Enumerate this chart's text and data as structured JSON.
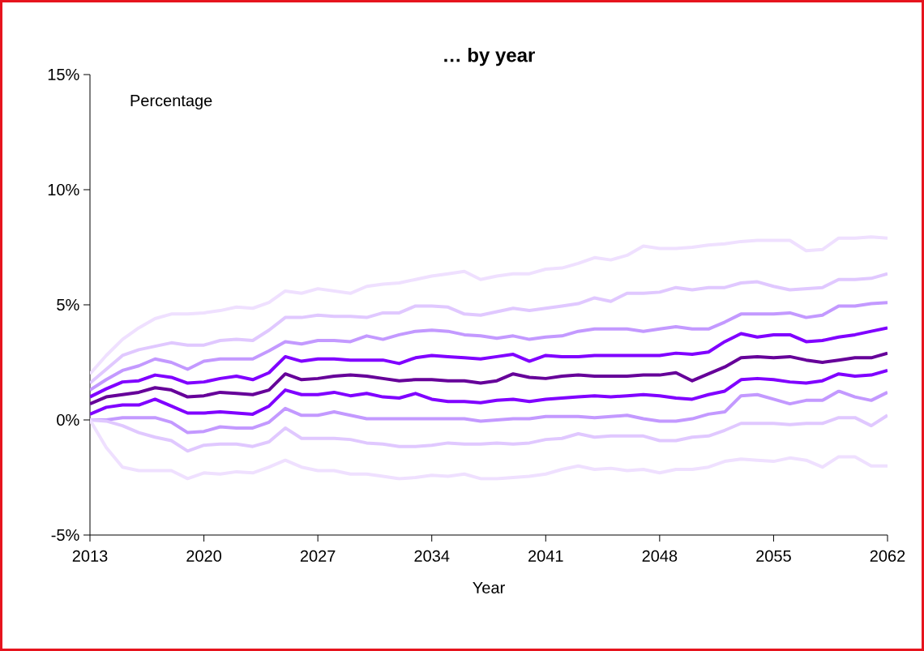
{
  "chart_data": {
    "type": "line",
    "title": "… by year",
    "xlabel": "Year",
    "ylabel": "Percentage",
    "x": [
      2013,
      2014,
      2015,
      2016,
      2017,
      2018,
      2019,
      2020,
      2021,
      2022,
      2023,
      2024,
      2025,
      2026,
      2027,
      2028,
      2029,
      2030,
      2031,
      2032,
      2033,
      2034,
      2035,
      2036,
      2037,
      2038,
      2039,
      2040,
      2041,
      2042,
      2043,
      2044,
      2045,
      2046,
      2047,
      2048,
      2049,
      2050,
      2051,
      2052,
      2053,
      2054,
      2055,
      2056,
      2057,
      2058,
      2059,
      2060,
      2061,
      2062
    ],
    "series": [
      {
        "color": "#efe0ff",
        "values": [
          2.0,
          2.8,
          3.5,
          4.0,
          4.4,
          4.6,
          4.6,
          4.65,
          4.75,
          4.9,
          4.85,
          5.1,
          5.6,
          5.5,
          5.7,
          5.6,
          5.5,
          5.8,
          5.9,
          5.95,
          6.1,
          6.25,
          6.35,
          6.45,
          6.1,
          6.25,
          6.35,
          6.35,
          6.55,
          6.6,
          6.8,
          7.05,
          6.95,
          7.15,
          7.55,
          7.45,
          7.45,
          7.5,
          7.6,
          7.65,
          7.75,
          7.8,
          7.8,
          7.8,
          7.35,
          7.4,
          7.9,
          7.9,
          7.95,
          7.9
        ]
      },
      {
        "color": "#e0c8ff",
        "values": [
          1.6,
          2.2,
          2.8,
          3.05,
          3.2,
          3.35,
          3.25,
          3.25,
          3.45,
          3.5,
          3.45,
          3.9,
          4.45,
          4.45,
          4.55,
          4.5,
          4.5,
          4.45,
          4.65,
          4.65,
          4.95,
          4.95,
          4.9,
          4.6,
          4.55,
          4.7,
          4.85,
          4.75,
          4.85,
          4.95,
          5.05,
          5.3,
          5.15,
          5.5,
          5.5,
          5.55,
          5.75,
          5.65,
          5.75,
          5.75,
          5.95,
          6.0,
          5.8,
          5.65,
          5.7,
          5.75,
          6.1,
          6.1,
          6.15,
          6.35
        ]
      },
      {
        "color": "#c399ff",
        "values": [
          1.3,
          1.75,
          2.15,
          2.35,
          2.65,
          2.5,
          2.2,
          2.55,
          2.65,
          2.65,
          2.65,
          3.0,
          3.4,
          3.3,
          3.45,
          3.45,
          3.4,
          3.65,
          3.5,
          3.7,
          3.85,
          3.9,
          3.85,
          3.7,
          3.65,
          3.55,
          3.65,
          3.5,
          3.6,
          3.65,
          3.85,
          3.95,
          3.95,
          3.95,
          3.85,
          3.95,
          4.05,
          3.95,
          3.95,
          4.25,
          4.6,
          4.6,
          4.6,
          4.65,
          4.45,
          4.55,
          4.95,
          4.95,
          5.05,
          5.1
        ]
      },
      {
        "color": "#8000ff",
        "values": [
          1.0,
          1.35,
          1.65,
          1.7,
          1.95,
          1.85,
          1.6,
          1.65,
          1.8,
          1.9,
          1.75,
          2.05,
          2.75,
          2.55,
          2.65,
          2.65,
          2.6,
          2.6,
          2.6,
          2.45,
          2.7,
          2.8,
          2.75,
          2.7,
          2.65,
          2.75,
          2.85,
          2.55,
          2.8,
          2.75,
          2.75,
          2.8,
          2.8,
          2.8,
          2.8,
          2.8,
          2.9,
          2.85,
          2.95,
          3.4,
          3.75,
          3.6,
          3.7,
          3.7,
          3.4,
          3.45,
          3.6,
          3.7,
          3.85,
          4.0
        ]
      },
      {
        "color": "#660099",
        "values": [
          0.7,
          1.0,
          1.1,
          1.2,
          1.4,
          1.3,
          1.0,
          1.05,
          1.2,
          1.15,
          1.1,
          1.3,
          2.0,
          1.75,
          1.8,
          1.9,
          1.95,
          1.9,
          1.8,
          1.7,
          1.75,
          1.75,
          1.7,
          1.7,
          1.6,
          1.7,
          2.0,
          1.85,
          1.8,
          1.9,
          1.95,
          1.9,
          1.9,
          1.9,
          1.95,
          1.95,
          2.05,
          1.7,
          2.0,
          2.3,
          2.7,
          2.75,
          2.7,
          2.75,
          2.6,
          2.5,
          2.6,
          2.7,
          2.7,
          2.9
        ]
      },
      {
        "color": "#8000ff",
        "values": [
          0.25,
          0.55,
          0.65,
          0.65,
          0.9,
          0.6,
          0.3,
          0.3,
          0.35,
          0.3,
          0.25,
          0.6,
          1.3,
          1.1,
          1.1,
          1.2,
          1.05,
          1.15,
          1.0,
          0.95,
          1.15,
          0.9,
          0.8,
          0.8,
          0.75,
          0.85,
          0.9,
          0.8,
          0.9,
          0.95,
          1.0,
          1.05,
          1.0,
          1.05,
          1.1,
          1.05,
          0.95,
          0.9,
          1.1,
          1.25,
          1.75,
          1.8,
          1.75,
          1.65,
          1.6,
          1.7,
          2.0,
          1.9,
          1.95,
          2.15
        ]
      },
      {
        "color": "#c399ff",
        "values": [
          0.0,
          0.0,
          0.1,
          0.1,
          0.1,
          -0.1,
          -0.55,
          -0.5,
          -0.3,
          -0.35,
          -0.35,
          -0.1,
          0.5,
          0.2,
          0.2,
          0.35,
          0.2,
          0.05,
          0.05,
          0.05,
          0.05,
          0.05,
          0.05,
          0.05,
          -0.05,
          0.0,
          0.05,
          0.05,
          0.15,
          0.15,
          0.15,
          0.1,
          0.15,
          0.2,
          0.05,
          -0.05,
          -0.05,
          0.05,
          0.25,
          0.35,
          1.05,
          1.1,
          0.9,
          0.7,
          0.85,
          0.85,
          1.25,
          1.0,
          0.85,
          1.2
        ]
      },
      {
        "color": "#e0c8ff",
        "values": [
          0.0,
          -0.05,
          -0.25,
          -0.55,
          -0.75,
          -0.9,
          -1.35,
          -1.1,
          -1.05,
          -1.05,
          -1.15,
          -0.95,
          -0.35,
          -0.8,
          -0.8,
          -0.8,
          -0.85,
          -1.0,
          -1.05,
          -1.15,
          -1.15,
          -1.1,
          -1.0,
          -1.05,
          -1.05,
          -1.0,
          -1.05,
          -1.0,
          -0.85,
          -0.8,
          -0.6,
          -0.75,
          -0.7,
          -0.7,
          -0.7,
          -0.9,
          -0.9,
          -0.75,
          -0.7,
          -0.45,
          -0.15,
          -0.15,
          -0.15,
          -0.2,
          -0.15,
          -0.15,
          0.1,
          0.1,
          -0.25,
          0.2
        ]
      },
      {
        "color": "#efe0ff",
        "values": [
          0.0,
          -1.2,
          -2.05,
          -2.2,
          -2.2,
          -2.2,
          -2.55,
          -2.3,
          -2.35,
          -2.25,
          -2.3,
          -2.05,
          -1.75,
          -2.05,
          -2.2,
          -2.2,
          -2.35,
          -2.35,
          -2.45,
          -2.55,
          -2.5,
          -2.4,
          -2.45,
          -2.35,
          -2.55,
          -2.55,
          -2.5,
          -2.45,
          -2.35,
          -2.15,
          -2.0,
          -2.15,
          -2.1,
          -2.2,
          -2.15,
          -2.3,
          -2.15,
          -2.15,
          -2.05,
          -1.8,
          -1.7,
          -1.75,
          -1.8,
          -1.65,
          -1.75,
          -2.05,
          -1.6,
          -1.6,
          -2.0,
          -2.0
        ]
      }
    ],
    "xlim": [
      2013,
      2062
    ],
    "xticks": [
      2013,
      2020,
      2027,
      2034,
      2041,
      2048,
      2055,
      2062
    ],
    "ylim": [
      -5,
      15
    ],
    "yticks": [
      {
        "value": -5,
        "label": "-5%"
      },
      {
        "value": 0,
        "label": "0%"
      },
      {
        "value": 5,
        "label": "5%"
      },
      {
        "value": 10,
        "label": "10%"
      },
      {
        "value": 15,
        "label": "15%"
      }
    ],
    "marker": "none",
    "line_style": "solid"
  }
}
